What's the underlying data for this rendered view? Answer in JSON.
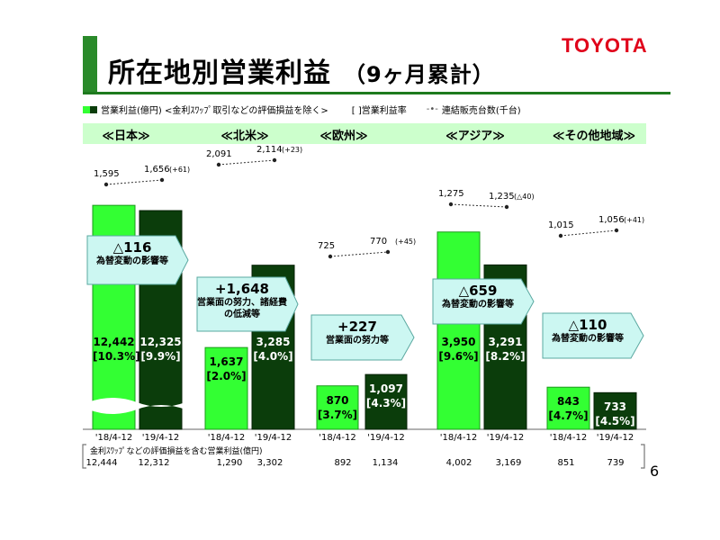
{
  "header": {
    "title": "所在地別営業利益",
    "subtitle": "（9ヶ月累計）",
    "logo": "TOYOTA"
  },
  "legend": {
    "operating_income": "営業利益(億円) <金利ｽﾜｯﾌﾟ取引などの評価損益を除く>",
    "margin": "[ ]営業利益率",
    "sales_marker": "-•-",
    "sales": "連結販売台数(千台)"
  },
  "colors": {
    "fy18": "#33ff33",
    "fy19": "#0b3d0b",
    "band": "#ccffcc",
    "callout": "#ccf7f2",
    "accent": "#1e7a1e",
    "logo": "#e0001a"
  },
  "chart_data": {
    "type": "bar",
    "categories": [
      "≪日本≫",
      "≪北米≫",
      "≪欧州≫",
      "≪アジア≫",
      "≪その他地域≫"
    ],
    "period_labels": [
      "'18/4-12",
      "'19/4-12"
    ],
    "series": [
      {
        "values": [
          12442,
          1637,
          870,
          3950,
          843
        ],
        "margins": [
          "[10.3%]",
          "[2.0%]",
          "[3.7%]",
          "[9.6%]",
          "[4.7%]"
        ],
        "labels": [
          "12,442",
          "1,637",
          "870",
          "3,950",
          "843"
        ]
      },
      {
        "values": [
          12325,
          3285,
          1097,
          3291,
          733
        ],
        "margins": [
          "[9.9%]",
          "[4.0%]",
          "[4.3%]",
          "[8.2%]",
          "[4.5%]"
        ],
        "labels": [
          "12,325",
          "3,285",
          "1,097",
          "3,291",
          "733"
        ]
      }
    ],
    "broken_axis_category": "≪日本≫",
    "sales_units": {
      "fy18": [
        "1,595",
        "2,091",
        "725",
        "1,275",
        "1,015"
      ],
      "fy19": [
        "1,656",
        "2,114",
        "770",
        "1,235",
        "1,056"
      ],
      "change": [
        "(+61)",
        "(+23)",
        "(+45)",
        "(△40)",
        "(+41)"
      ]
    },
    "changes": [
      {
        "value": "△116",
        "note": "為替変動の影響等"
      },
      {
        "value": "+1,648",
        "note": "営業面の努力、諸経費の低減等"
      },
      {
        "value": "+227",
        "note": "営業面の努力等"
      },
      {
        "value": "△659",
        "note": "為替変動の影響等"
      },
      {
        "value": "△110",
        "note": "為替変動の影響等"
      }
    ]
  },
  "footer": {
    "title": "金利ｽﾜｯﾌﾟなどの評価損益を含む営業利益(億円)",
    "values": [
      "12,444",
      "12,312",
      "1,290",
      "3,302",
      "892",
      "1,134",
      "4,002",
      "3,169",
      "851",
      "739"
    ]
  },
  "page_number": "6"
}
